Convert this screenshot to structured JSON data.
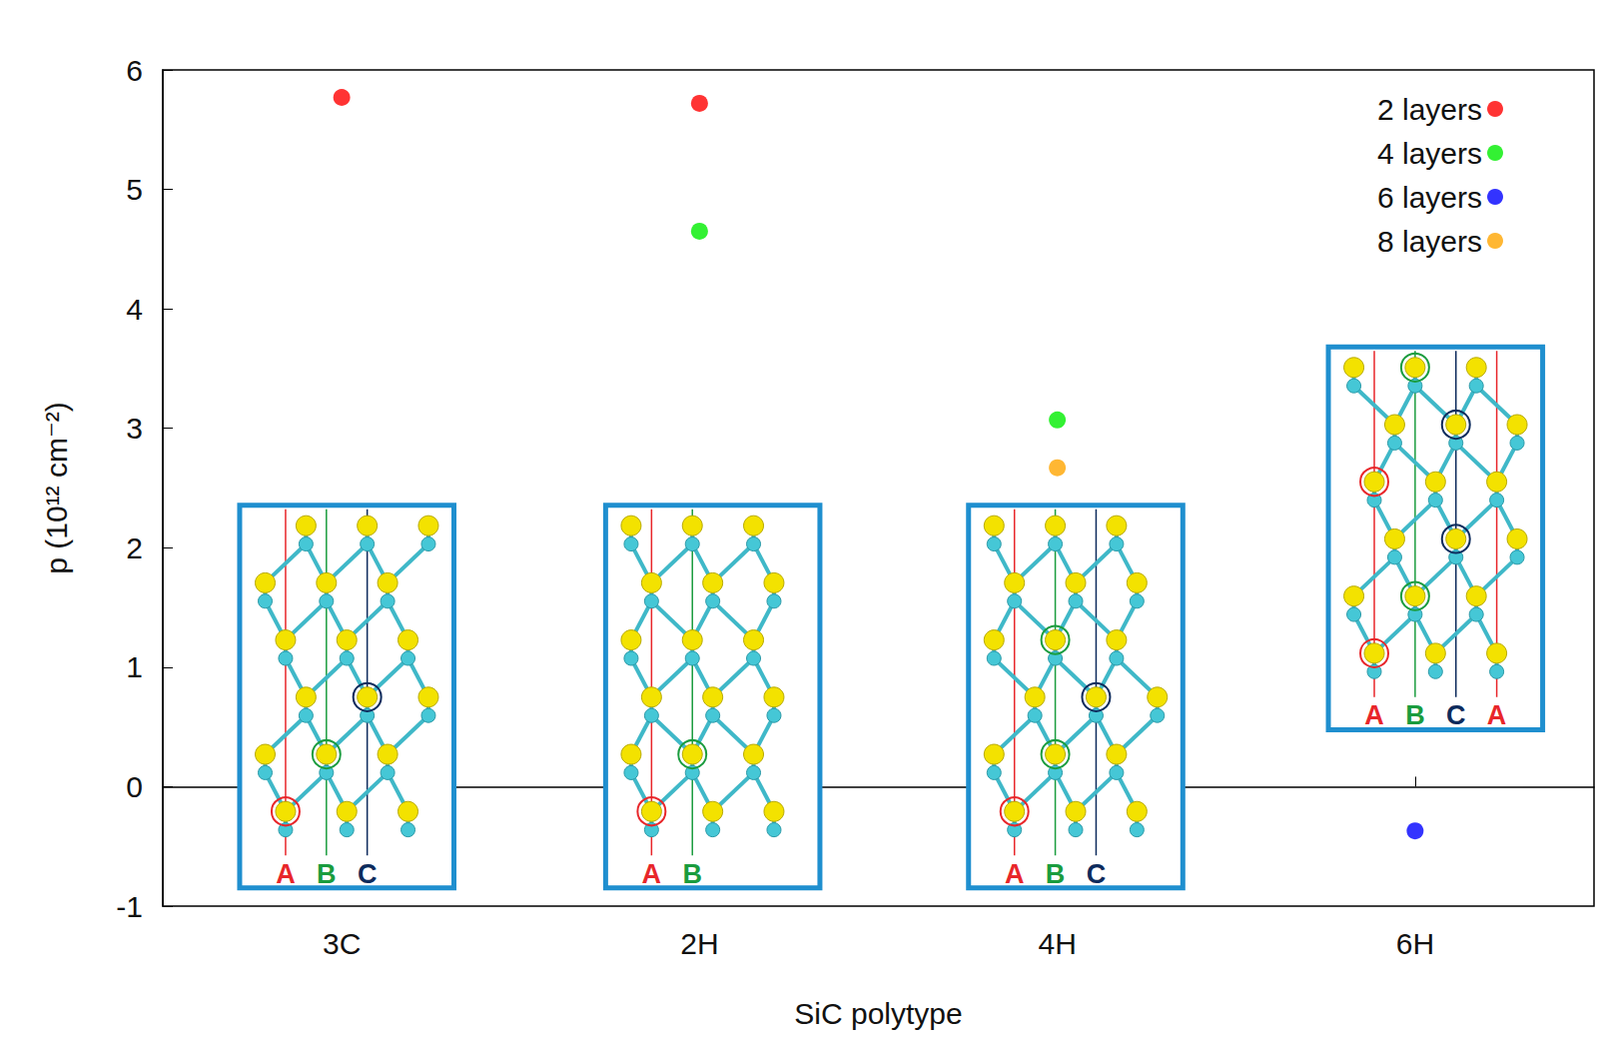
{
  "chart_data": {
    "type": "scatter",
    "categories": [
      "3C",
      "2H",
      "4H",
      "6H"
    ],
    "xlabel": "SiC polytype",
    "ylabel": "p (10¹² cm⁻²)",
    "ylim": [
      -1,
      6
    ],
    "yticks": [
      -1,
      0,
      1,
      2,
      3,
      4,
      5,
      6
    ],
    "grid": false,
    "legend": "upper right",
    "series": [
      {
        "name": "2 layers",
        "color": "#ff0000",
        "values": [
          5.77,
          5.72,
          null,
          null
        ]
      },
      {
        "name": "4 layers",
        "color": "#00ee00",
        "values": [
          null,
          4.65,
          3.07,
          null
        ]
      },
      {
        "name": "6 layers",
        "color": "#0000ff",
        "values": [
          null,
          null,
          null,
          -0.37
        ]
      },
      {
        "name": "8 layers",
        "color": "#ffa500",
        "values": [
          null,
          null,
          2.67,
          null
        ]
      }
    ],
    "insets": [
      {
        "category": "3C",
        "labels": [
          "A",
          "B",
          "C"
        ],
        "colors": [
          "#e8262a",
          "#1a9c3e",
          "#0d2b5c"
        ]
      },
      {
        "category": "2H",
        "labels": [
          "A",
          "B"
        ],
        "colors": [
          "#e8262a",
          "#1a9c3e"
        ]
      },
      {
        "category": "4H",
        "labels": [
          "A",
          "B",
          "C"
        ],
        "colors": [
          "#e8262a",
          "#1a9c3e",
          "#0d2b5c"
        ]
      },
      {
        "category": "6H",
        "labels": [
          "A",
          "B",
          "C",
          "A"
        ],
        "colors": [
          "#e8262a",
          "#1a9c3e",
          "#0d2b5c",
          "#e8262a"
        ]
      }
    ]
  }
}
